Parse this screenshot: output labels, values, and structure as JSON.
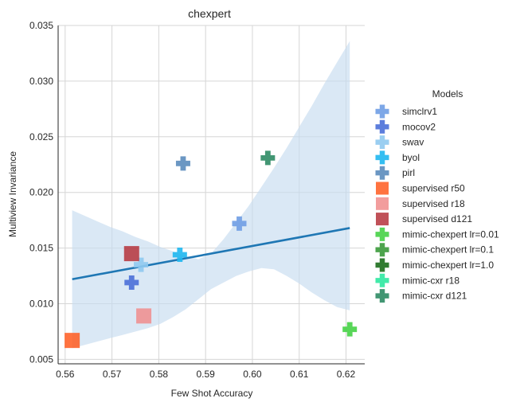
{
  "chart_data": {
    "type": "scatter",
    "title": "chexpert",
    "xlabel": "Few Shot Accuracy",
    "ylabel": "Multiview Invariance",
    "xlim": [
      0.5585,
      0.624
    ],
    "ylim": [
      0.0046,
      0.035
    ],
    "xticks": [
      "0.56",
      "0.57",
      "0.58",
      "0.59",
      "0.60",
      "0.61",
      "0.62"
    ],
    "yticks": [
      "0.005",
      "0.010",
      "0.015",
      "0.020",
      "0.025",
      "0.030",
      "0.035"
    ],
    "grid": true,
    "legend": {
      "title": "Models",
      "placement": "right"
    },
    "series": [
      {
        "name": "simclrv1",
        "marker": "plus",
        "color": "#6f9de4",
        "x": [
          0.5972
        ],
        "y": [
          0.0172
        ]
      },
      {
        "name": "mocov2",
        "marker": "plus",
        "color": "#4a6fd8",
        "x": [
          0.5742
        ],
        "y": [
          0.0119
        ]
      },
      {
        "name": "swav",
        "marker": "plus",
        "color": "#8fc9f0",
        "x": [
          0.5762
        ],
        "y": [
          0.0135
        ]
      },
      {
        "name": "byol",
        "marker": "plus",
        "color": "#1fb7ef",
        "x": [
          0.5845
        ],
        "y": [
          0.0144
        ]
      },
      {
        "name": "pirl",
        "marker": "plus",
        "color": "#5b8cbd",
        "x": [
          0.5852
        ],
        "y": [
          0.0226
        ]
      },
      {
        "name": "supervised r50",
        "marker": "square",
        "color": "#ff5a1f",
        "x": [
          0.5615
        ],
        "y": [
          0.0067
        ]
      },
      {
        "name": "supervised r18",
        "marker": "square",
        "color": "#f08c8c",
        "x": [
          0.5768
        ],
        "y": [
          0.0089
        ]
      },
      {
        "name": "supervised d121",
        "marker": "square",
        "color": "#b5333b",
        "x": [
          0.5742
        ],
        "y": [
          0.0145
        ]
      },
      {
        "name": "mimic-chexpert lr=0.01",
        "marker": "plus",
        "color": "#46d246",
        "x": [
          0.6208
        ],
        "y": [
          0.0077
        ]
      },
      {
        "name": "mimic-chexpert lr=0.1",
        "marker": "plus",
        "color": "#3a9a3a",
        "x": [],
        "y": []
      },
      {
        "name": "mimic-chexpert lr=1.0",
        "marker": "plus",
        "color": "#1c6e1c",
        "x": [],
        "y": []
      },
      {
        "name": "mimic-cxr r18",
        "marker": "plus",
        "color": "#2ee8a0",
        "x": [],
        "y": []
      },
      {
        "name": "mimic-cxr d121",
        "marker": "plus",
        "color": "#2e8b64",
        "x": [
          0.6033
        ],
        "y": [
          0.0231
        ]
      }
    ],
    "regression": {
      "color": "#1f77b4",
      "band_color": "#c6dbef",
      "x": [
        0.5615,
        0.6208
      ],
      "y": [
        0.0122,
        0.0168
      ],
      "band_lower": [
        0.006,
        0.0063,
        0.0066,
        0.0069,
        0.0072,
        0.0075,
        0.0078,
        0.0082,
        0.0088,
        0.0095,
        0.0104,
        0.0113,
        0.0119,
        0.0125,
        0.0129,
        0.0132,
        0.0131,
        0.0125,
        0.0118,
        0.011,
        0.0103,
        0.0097,
        0.0094
      ],
      "band_upper": [
        0.0184,
        0.0179,
        0.0174,
        0.0169,
        0.0165,
        0.016,
        0.0156,
        0.0151,
        0.0147,
        0.0143,
        0.014,
        0.0145,
        0.0158,
        0.0173,
        0.0188,
        0.0205,
        0.0222,
        0.024,
        0.0259,
        0.0278,
        0.0298,
        0.0317,
        0.0336
      ]
    }
  }
}
